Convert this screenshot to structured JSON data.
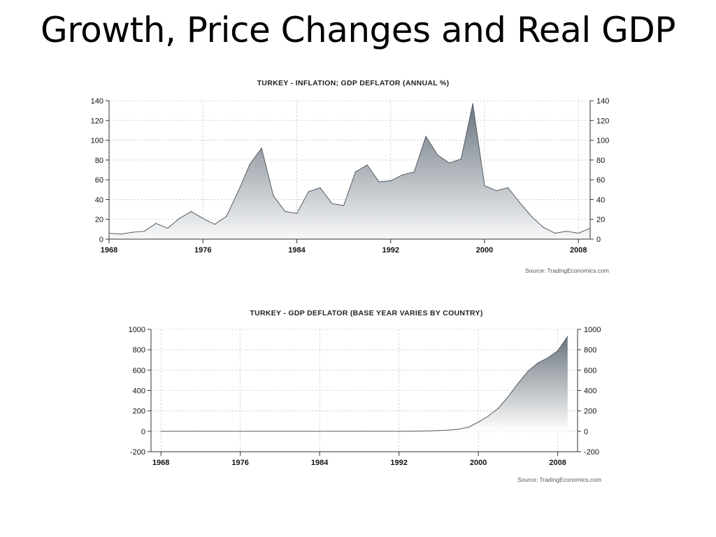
{
  "slide": {
    "title": "Growth, Price Changes and Real GDP"
  },
  "chart_data": [
    {
      "type": "area",
      "title": "TURKEY - INFLATION; GDP DEFLATOR (ANNUAL %)",
      "source": "Source: TradingEconomics.com",
      "xlim": [
        1968,
        2009
      ],
      "ylim": [
        0,
        140
      ],
      "x_ticks": [
        "1968",
        "1976",
        "1984",
        "1992",
        "2000",
        "2008"
      ],
      "y_ticks": [
        "0",
        "20",
        "40",
        "60",
        "80",
        "100",
        "120",
        "140"
      ],
      "y_axis_both_sides": true,
      "grid": true,
      "x": [
        1968,
        1969,
        1970,
        1971,
        1972,
        1973,
        1974,
        1975,
        1976,
        1977,
        1978,
        1979,
        1980,
        1981,
        1982,
        1983,
        1984,
        1985,
        1986,
        1987,
        1988,
        1989,
        1990,
        1991,
        1992,
        1993,
        1994,
        1995,
        1996,
        1997,
        1998,
        1999,
        2000,
        2001,
        2002,
        2003,
        2004,
        2005,
        2006,
        2007,
        2008,
        2009
      ],
      "values": [
        6,
        5,
        7,
        8,
        16,
        11,
        21,
        28,
        21,
        15,
        23,
        48,
        76,
        92,
        44,
        28,
        26,
        48,
        52,
        36,
        34,
        68,
        75,
        58,
        59,
        65,
        68,
        104,
        85,
        77,
        81,
        137,
        54,
        49,
        52,
        37,
        23,
        12,
        6,
        8,
        6,
        11
      ]
    },
    {
      "type": "area",
      "title": "TURKEY - GDP DEFLATOR (BASE YEAR VARIES BY COUNTRY)",
      "source": "Source: TradingEconomics.com",
      "xlim": [
        1967,
        2010
      ],
      "ylim": [
        -200,
        1000
      ],
      "x_ticks": [
        "1968",
        "1976",
        "1984",
        "1992",
        "2000",
        "2008"
      ],
      "y_ticks": [
        "-200",
        "0",
        "200",
        "400",
        "600",
        "800",
        "1000"
      ],
      "y_axis_both_sides": true,
      "grid": true,
      "x": [
        1968,
        1969,
        1970,
        1971,
        1972,
        1973,
        1974,
        1975,
        1976,
        1977,
        1978,
        1979,
        1980,
        1981,
        1982,
        1983,
        1984,
        1985,
        1986,
        1987,
        1988,
        1989,
        1990,
        1991,
        1992,
        1993,
        1994,
        1995,
        1996,
        1997,
        1998,
        1999,
        2000,
        2001,
        2002,
        2003,
        2004,
        2005,
        2006,
        2007,
        2008,
        2009
      ],
      "values": [
        0,
        0,
        0,
        0,
        0,
        0,
        0,
        0,
        0,
        0,
        0,
        0,
        0,
        0,
        0,
        0,
        0,
        0,
        0,
        0,
        0,
        0,
        0,
        0,
        0.5,
        1,
        2,
        4,
        7,
        12,
        20,
        40,
        90,
        150,
        225,
        340,
        470,
        590,
        670,
        720,
        790,
        930
      ]
    }
  ]
}
